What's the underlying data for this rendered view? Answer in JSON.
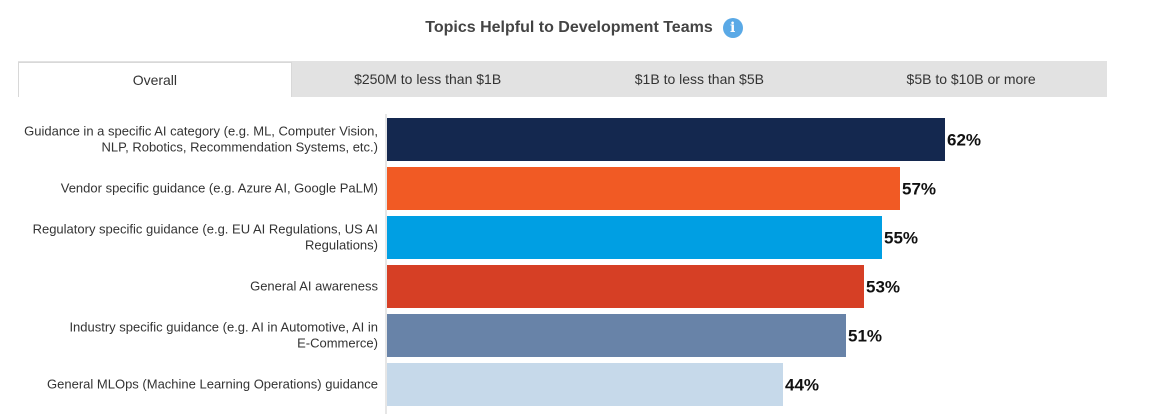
{
  "header": {
    "title": "Topics Helpful to Development Teams",
    "info_glyph": "i"
  },
  "tabs": [
    {
      "label": "Overall",
      "active": true
    },
    {
      "label": "$250M to less than $1B",
      "active": false
    },
    {
      "label": "$1B to less than $5B",
      "active": false
    },
    {
      "label": "$5B to $10B or more",
      "active": false
    }
  ],
  "chart_data": {
    "type": "bar",
    "orientation": "horizontal",
    "categories": [
      [
        "Guidance in a specific AI category (e.g. ML, Computer Vision,",
        "NLP, Robotics, Recommendation Systems, etc.)"
      ],
      [
        "Vendor specific guidance (e.g. Azure AI, Google PaLM)"
      ],
      [
        "Regulatory specific guidance (e.g. EU AI Regulations, US AI",
        "Regulations)"
      ],
      [
        "General AI awareness"
      ],
      [
        "Industry specific guidance (e.g. AI in Automotive, AI in",
        "E-Commerce)"
      ],
      [
        "General MLOps (Machine Learning Operations) guidance"
      ]
    ],
    "values": [
      62,
      57,
      55,
      53,
      51,
      44
    ],
    "value_labels": [
      "62%",
      "57%",
      "55%",
      "53%",
      "51%",
      "44%"
    ],
    "colors": [
      "#14284f",
      "#f15a24",
      "#009fe3",
      "#d63f25",
      "#6883a8",
      "#c6d9ea"
    ],
    "xlim": [
      0,
      100
    ],
    "grid": false,
    "legend": false
  }
}
